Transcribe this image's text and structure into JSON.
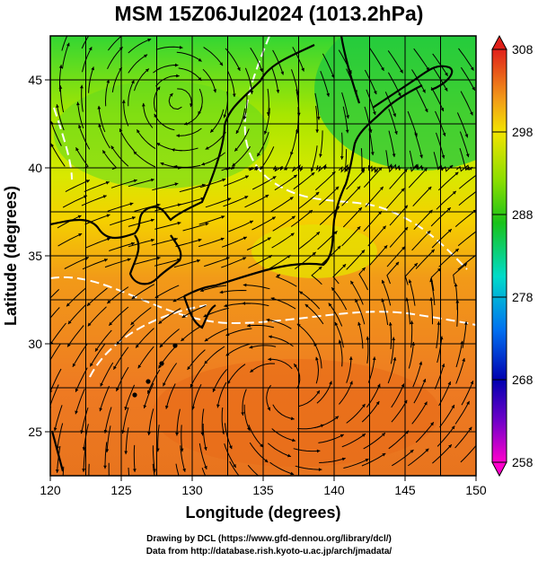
{
  "title": "MSM 15Z06Jul2024 (1013.2hPa)",
  "x_axis": {
    "label": "Longitude (degrees)",
    "range": [
      120,
      150
    ],
    "ticks": [
      120,
      125,
      130,
      135,
      140,
      145,
      150
    ]
  },
  "y_axis": {
    "label": "Latitude  (degrees)",
    "range": [
      22.5,
      47.5
    ],
    "ticks": [
      25,
      30,
      35,
      40,
      45
    ]
  },
  "colorbar": {
    "range": [
      258,
      308
    ],
    "tick_labels": [
      "308",
      "298",
      "288",
      "278",
      "268",
      "258"
    ]
  },
  "credits": [
    "Drawing by DCL (https://www.gfd-dennou.org/library/dcl/)",
    "Data from http://database.rish.kyoto-u.ac.jp/arch/jmadata/"
  ],
  "colors": {
    "cold": "#ff00ff",
    "cool": "#0000ff",
    "mid": "#00ffff",
    "mild": "#00c000",
    "warm": "#ffff00",
    "hot": "#ff0000"
  }
}
